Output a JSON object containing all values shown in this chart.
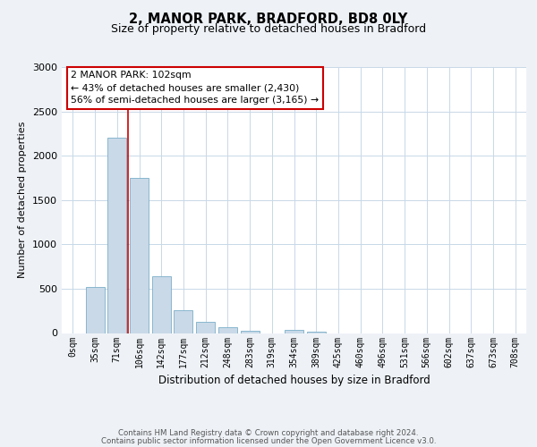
{
  "title1": "2, MANOR PARK, BRADFORD, BD8 0LY",
  "title2": "Size of property relative to detached houses in Bradford",
  "xlabel": "Distribution of detached houses by size in Bradford",
  "ylabel": "Number of detached properties",
  "bar_labels": [
    "0sqm",
    "35sqm",
    "71sqm",
    "106sqm",
    "142sqm",
    "177sqm",
    "212sqm",
    "248sqm",
    "283sqm",
    "319sqm",
    "354sqm",
    "389sqm",
    "425sqm",
    "460sqm",
    "496sqm",
    "531sqm",
    "566sqm",
    "602sqm",
    "637sqm",
    "673sqm",
    "708sqm"
  ],
  "bar_values": [
    0,
    520,
    2200,
    1750,
    640,
    260,
    130,
    70,
    30,
    0,
    40,
    20,
    0,
    0,
    0,
    0,
    0,
    0,
    0,
    0,
    0
  ],
  "bar_color": "#c9d9e8",
  "bar_edge_color": "#7aafc8",
  "vline_color": "#cc0000",
  "vline_pos": 2.5,
  "ylim": [
    0,
    3000
  ],
  "yticks": [
    0,
    500,
    1000,
    1500,
    2000,
    2500,
    3000
  ],
  "annotation_title": "2 MANOR PARK: 102sqm",
  "annotation_line1": "← 43% of detached houses are smaller (2,430)",
  "annotation_line2": "56% of semi-detached houses are larger (3,165) →",
  "annotation_box_color": "#ffffff",
  "annotation_box_edge": "#cc0000",
  "footer_line1": "Contains HM Land Registry data © Crown copyright and database right 2024.",
  "footer_line2": "Contains public sector information licensed under the Open Government Licence v3.0.",
  "bg_color": "#eef2f7",
  "plot_bg_color": "#ffffff",
  "grid_color": "#c8d8e8"
}
